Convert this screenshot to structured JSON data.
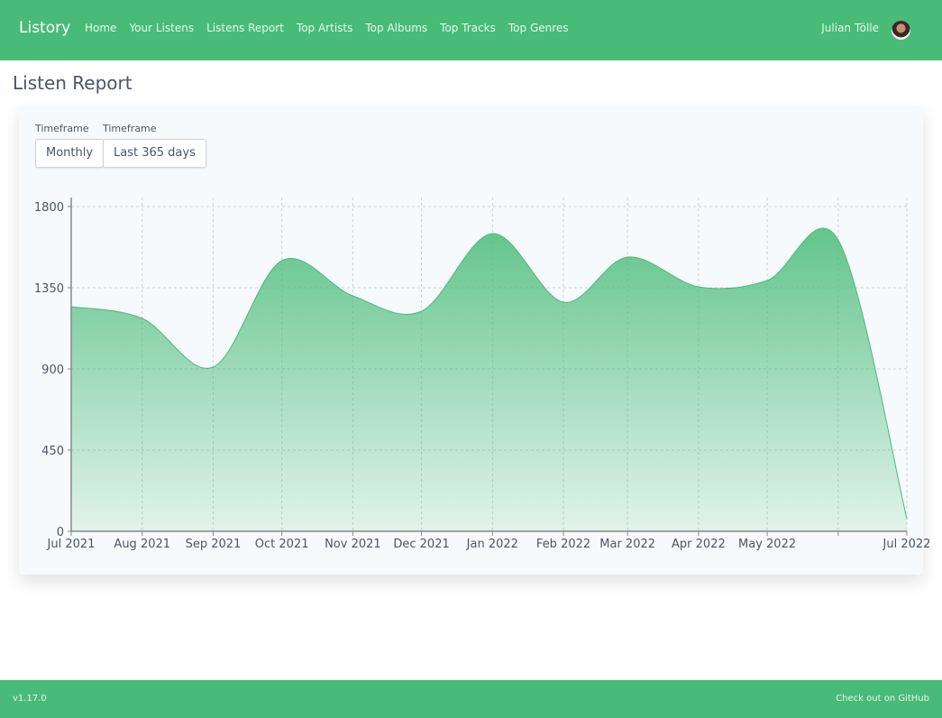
{
  "nav": {
    "brand": "Listory",
    "links": [
      "Home",
      "Your Listens",
      "Listens Report",
      "Top Artists",
      "Top Albums",
      "Top Tracks",
      "Top Genres"
    ],
    "user_name": "Julian Tölle"
  },
  "page_title": "Listen Report",
  "filters": [
    {
      "label": "Timeframe",
      "value": "Monthly"
    },
    {
      "label": "Timeframe",
      "value": "Last 365 days"
    }
  ],
  "colors": {
    "accent": "#48bb78"
  },
  "chart_data": {
    "type": "area",
    "x": [
      "2021-07-01",
      "2021-08-01",
      "2021-09-01",
      "2021-10-01",
      "2021-11-01",
      "2021-12-01",
      "2022-01-01",
      "2022-02-01",
      "2022-03-01",
      "2022-04-01",
      "2022-05-01",
      "2022-06-01",
      "2022-07-01"
    ],
    "values": [
      1245,
      1180,
      910,
      1500,
      1305,
      1220,
      1650,
      1270,
      1520,
      1355,
      1390,
      1615,
      70
    ],
    "x_tick_labels": [
      "Jul 2021",
      "Aug 2021",
      "Sep 2021",
      "Oct 2021",
      "Nov 2021",
      "Dec 2021",
      "Jan 2022",
      "Feb 2022",
      "Mar 2022",
      "Apr 2022",
      "May 2022",
      "",
      "Jul 2022"
    ],
    "y_ticks": [
      0,
      450,
      900,
      1350,
      1800
    ],
    "ylim": [
      0,
      1800
    ],
    "grid": true,
    "curve": "smooth"
  },
  "footer": {
    "version": "v1.17.0",
    "github": "Check out on GitHub"
  }
}
